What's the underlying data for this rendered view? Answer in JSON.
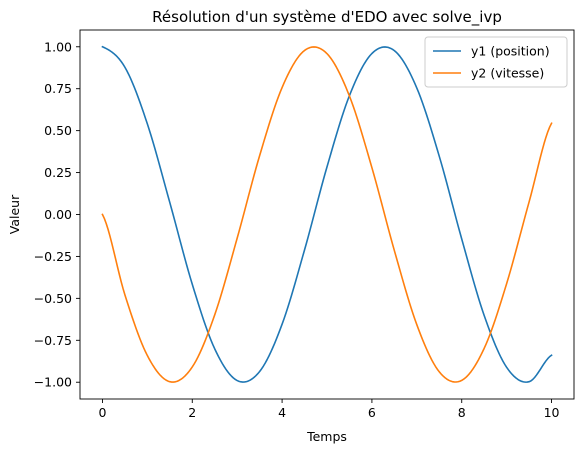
{
  "chart_data": {
    "type": "line",
    "title": "Résolution d'un système d'EDO avec solve_ivp",
    "xlabel": "Temps",
    "ylabel": "Valeur",
    "xlim": [
      -0.5,
      10.5
    ],
    "ylim": [
      -1.1,
      1.1
    ],
    "xticks": [
      0,
      2,
      4,
      6,
      8,
      10
    ],
    "xtick_labels": [
      "0",
      "2",
      "4",
      "6",
      "8",
      "10"
    ],
    "yticks": [
      1.0,
      0.75,
      0.5,
      0.25,
      0.0,
      -0.25,
      -0.5,
      -0.75,
      -1.0
    ],
    "ytick_labels": [
      "1.00",
      "0.75",
      "0.50",
      "0.25",
      "0.00",
      "−0.25",
      "−0.50",
      "−0.75",
      "−1.00"
    ],
    "grid": false,
    "legend_position": "top-right",
    "x": [
      0,
      0.5,
      1,
      1.5,
      2,
      2.5,
      3,
      3.5,
      4,
      4.5,
      5,
      5.5,
      6,
      6.5,
      7,
      7.5,
      8,
      8.5,
      9,
      9.5,
      10
    ],
    "series": [
      {
        "name": "y1 (position)",
        "color": "#1f77b4",
        "values": [
          1.0,
          0.878,
          0.54,
          0.071,
          -0.416,
          -0.801,
          -0.99,
          -0.936,
          -0.654,
          -0.211,
          0.284,
          0.709,
          0.96,
          0.977,
          0.754,
          0.347,
          -0.146,
          -0.602,
          -0.911,
          -0.997,
          -0.839
        ]
      },
      {
        "name": "y2 (vitesse)",
        "color": "#ff7f0e",
        "values": [
          0.0,
          -0.479,
          -0.841,
          -0.997,
          -0.909,
          -0.598,
          -0.141,
          0.351,
          0.757,
          0.978,
          0.959,
          0.706,
          0.279,
          -0.215,
          -0.657,
          -0.938,
          -0.989,
          -0.798,
          -0.412,
          0.075,
          0.544
        ]
      }
    ]
  }
}
